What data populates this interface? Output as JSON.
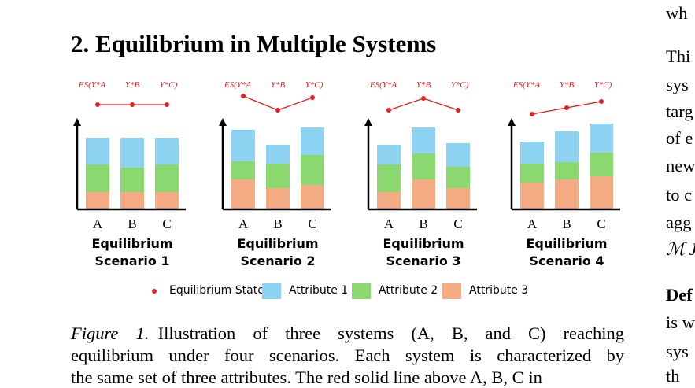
{
  "section_title": "2. Equilibrium in Multiple Systems",
  "chart_data": [
    {
      "type": "bar",
      "stacked": true,
      "title": "Equilibrium Scenario 1",
      "annotations": [
        "ES(Y*A",
        "Y*B",
        "Y*C)"
      ],
      "categories": [
        "A",
        "B",
        "C"
      ],
      "ylim": [
        0,
        150
      ],
      "series": [
        {
          "name": "Attribute 3",
          "color": "#f4ab84",
          "values": [
            22,
            22,
            22
          ]
        },
        {
          "name": "Attribute 2",
          "color": "#8cd870",
          "values": [
            35,
            31,
            35
          ]
        },
        {
          "name": "Attribute 1",
          "color": "#8fd3f2",
          "values": [
            34,
            38,
            34
          ]
        },
        {
          "name": "Equilibrium State",
          "type": "line",
          "color": "#e02020",
          "values": [
            133,
            133,
            133
          ]
        }
      ]
    },
    {
      "type": "bar",
      "stacked": true,
      "title": "Equilibrium Scenario 2",
      "annotations": [
        "ES(Y*A",
        "Y*B",
        "Y*C)"
      ],
      "categories": [
        "A",
        "B",
        "C"
      ],
      "ylim": [
        0,
        150
      ],
      "series": [
        {
          "name": "Attribute 3",
          "color": "#f4ab84",
          "values": [
            38,
            27,
            31
          ]
        },
        {
          "name": "Attribute 2",
          "color": "#8cd870",
          "values": [
            23,
            31,
            38
          ]
        },
        {
          "name": "Attribute 1",
          "color": "#8fd3f2",
          "values": [
            40,
            24,
            35
          ]
        },
        {
          "name": "Equilibrium State",
          "type": "line",
          "color": "#e02020",
          "values": [
            144,
            126,
            142
          ]
        }
      ]
    },
    {
      "type": "bar",
      "stacked": true,
      "title": "Equilibrium Scenario 3",
      "annotations": [
        "ES(Y*A",
        "Y*B",
        "Y*C)"
      ],
      "categories": [
        "A",
        "B",
        "C"
      ],
      "ylim": [
        0,
        150
      ],
      "series": [
        {
          "name": "Attribute 3",
          "color": "#f4ab84",
          "values": [
            22,
            38,
            27
          ]
        },
        {
          "name": "Attribute 2",
          "color": "#8cd870",
          "values": [
            35,
            33,
            27
          ]
        },
        {
          "name": "Attribute 1",
          "color": "#8fd3f2",
          "values": [
            25,
            33,
            30
          ]
        },
        {
          "name": "Equilibrium State",
          "type": "line",
          "color": "#e02020",
          "values": [
            126,
            141,
            126
          ]
        }
      ]
    },
    {
      "type": "bar",
      "stacked": true,
      "title": "Equilibrium Scenario 4",
      "annotations": [
        "ES(Y*A",
        "Y*B",
        "Y*C)"
      ],
      "categories": [
        "A",
        "B",
        "C"
      ],
      "ylim": [
        0,
        150
      ],
      "series": [
        {
          "name": "Attribute 3",
          "color": "#f4ab84",
          "values": [
            34,
            38,
            42
          ]
        },
        {
          "name": "Attribute 2",
          "color": "#8cd870",
          "values": [
            24,
            22,
            30
          ]
        },
        {
          "name": "Attribute 1",
          "color": "#8fd3f2",
          "values": [
            28,
            39,
            37
          ]
        },
        {
          "name": "Equilibrium State",
          "type": "line",
          "color": "#e02020",
          "values": [
            121,
            129,
            137
          ]
        }
      ]
    }
  ],
  "caption": {
    "label": "Figure 1.",
    "lines": [
      "Illustration of three systems (A, B, and C) reaching",
      "equilibrium under four scenarios. Each system is characterized by",
      "the same set of three attributes. The red solid line above A, B, C in"
    ]
  },
  "right_column": [
    "wh",
    "Thi",
    "sys",
    "targ",
    "of e",
    "new",
    "to c",
    "agg",
    "ℳ J",
    "Def",
    "is w",
    "sys",
    "th"
  ]
}
